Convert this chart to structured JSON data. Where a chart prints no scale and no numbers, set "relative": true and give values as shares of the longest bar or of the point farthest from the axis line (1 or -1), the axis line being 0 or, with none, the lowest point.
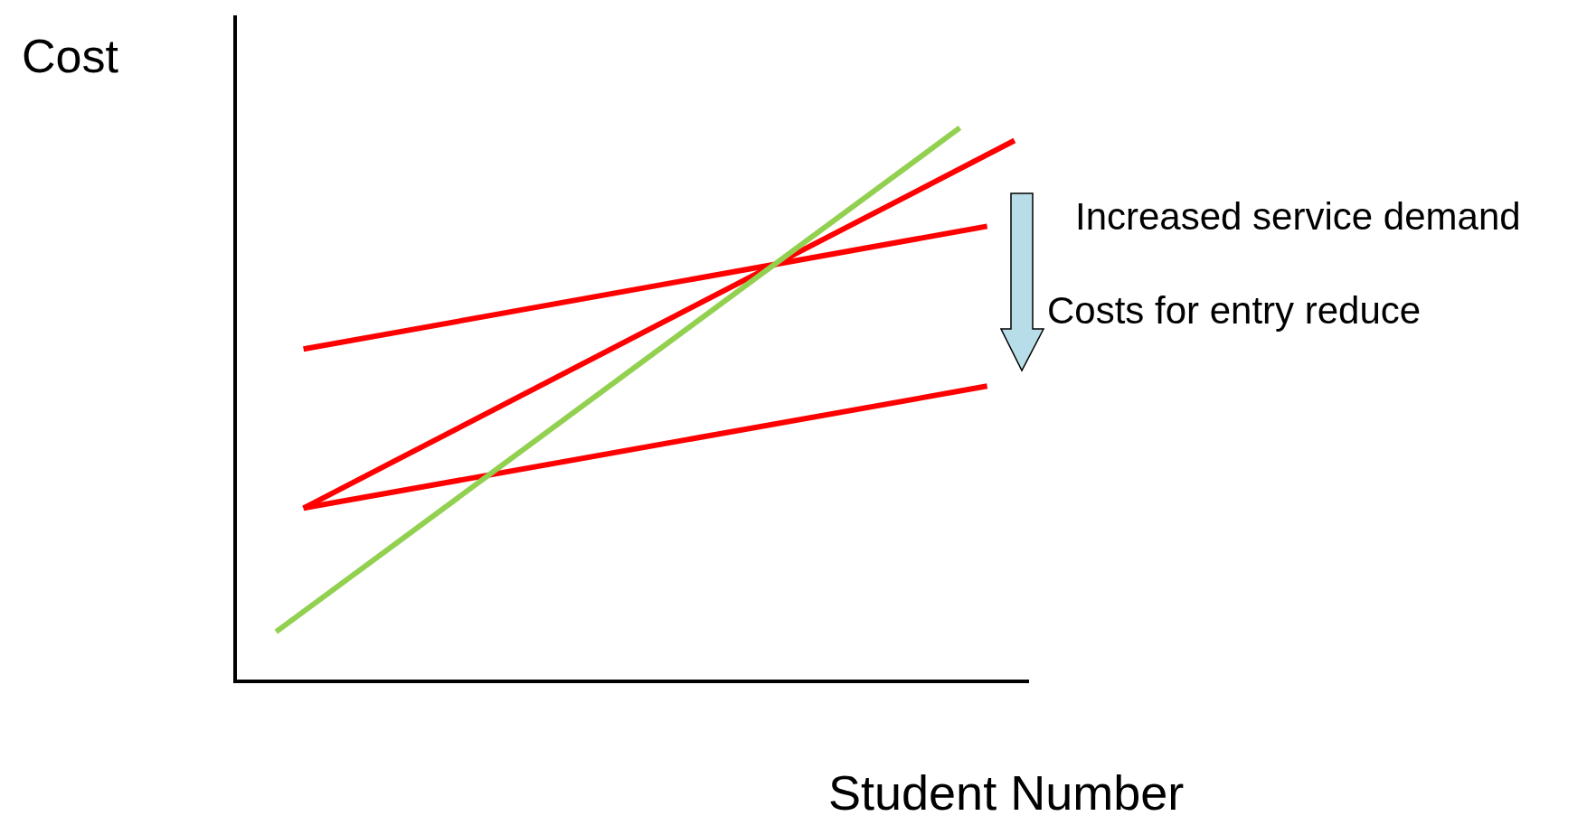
{
  "chart_data": {
    "type": "line",
    "relative": true,
    "xlabel": "Student Number",
    "ylabel": "Cost",
    "grid": false,
    "legend": false,
    "marker": "none",
    "line_style": "solid",
    "annotations": [
      "Increased service demand",
      "Costs for entry reduce"
    ],
    "categories": [
      null,
      null,
      null,
      null,
      null,
      null,
      null,
      null,
      null,
      null,
      null,
      null,
      null,
      null,
      null,
      null,
      null,
      null,
      null,
      null,
      null,
      null,
      null,
      null,
      null,
      null,
      null,
      null,
      null
    ],
    "series": [
      {
        "color": "#92d050",
        "values": [
          null,
          0.089,
          null,
          null,
          null,
          null,
          null,
          null,
          null,
          null,
          null,
          null,
          null,
          null,
          null,
          null,
          null,
          null,
          null,
          null,
          null,
          null,
          null,
          null,
          null,
          null,
          1,
          null,
          null
        ]
      },
      {
        "color": "#ff0000",
        "values": [
          null,
          null,
          0.3125,
          null,
          null,
          null,
          null,
          null,
          null,
          null,
          null,
          null,
          null,
          null,
          null,
          null,
          null,
          null,
          null,
          null,
          null,
          null,
          null,
          null,
          null,
          null,
          null,
          null,
          0.977
        ]
      },
      {
        "color": "#ff0000",
        "values": [
          null,
          null,
          0.6,
          null,
          null,
          null,
          null,
          null,
          null,
          null,
          null,
          null,
          null,
          null,
          null,
          null,
          null,
          null,
          null,
          null,
          null,
          null,
          null,
          null,
          null,
          null,
          null,
          0.822,
          null
        ]
      },
      {
        "color": "#ff0000",
        "values": [
          null,
          null,
          0.3125,
          null,
          null,
          null,
          null,
          null,
          null,
          null,
          null,
          null,
          null,
          null,
          null,
          null,
          null,
          null,
          null,
          null,
          null,
          null,
          null,
          null,
          null,
          null,
          null,
          0.533,
          null
        ]
      }
    ]
  }
}
